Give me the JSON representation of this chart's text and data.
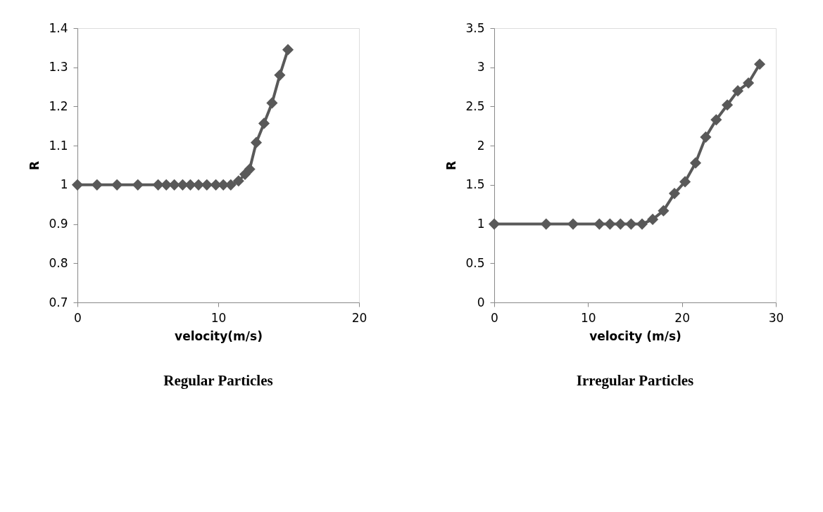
{
  "chart_data": [
    {
      "type": "line",
      "xlabel": "velocity(m/s)",
      "ylabel": "R",
      "marker": "diamond",
      "line_style": "solid",
      "grid": false,
      "legend": false,
      "xlim": [
        0,
        20
      ],
      "xticks": [
        0,
        10,
        20
      ],
      "ylim": [
        0.7,
        1.4
      ],
      "yticks": [
        0.7,
        0.8,
        0.9,
        1,
        1.1,
        1.2,
        1.3,
        1.4
      ],
      "annotations": [
        "Regular Particles"
      ],
      "series": [
        {
          "color": "#595959",
          "x": [
            0,
            1.39,
            2.81,
            4.29,
            5.73,
            6.31,
            6.88,
            7.47,
            8.02,
            8.6,
            9.19,
            9.83,
            10.36,
            10.89,
            11.44,
            11.9,
            12.23,
            12.7,
            13.25,
            13.82,
            14.37,
            14.95
          ],
          "values": [
            1,
            1,
            1,
            1,
            1,
            1,
            1,
            1,
            1,
            1,
            1,
            1,
            1,
            1,
            1.01,
            1.027,
            1.04,
            1.108,
            1.157,
            1.209,
            1.28,
            1.345
          ]
        }
      ]
    },
    {
      "type": "line",
      "xlabel": "velocity (m/s)",
      "ylabel": "R",
      "marker": "diamond",
      "line_style": "solid",
      "grid": false,
      "legend": false,
      "xlim": [
        0,
        30
      ],
      "xticks": [
        0,
        10,
        20,
        30
      ],
      "ylim": [
        0,
        3.5
      ],
      "yticks": [
        0,
        0.5,
        1,
        1.5,
        2,
        2.5,
        3,
        3.5
      ],
      "annotations": [
        "Irregular Particles"
      ],
      "series": [
        {
          "color": "#595959",
          "x": [
            0,
            5.53,
            8.4,
            11.2,
            12.33,
            13.45,
            14.58,
            15.75,
            16.88,
            18.03,
            19.2,
            20.33,
            21.45,
            22.53,
            23.65,
            24.83,
            25.95,
            27.08,
            28.28
          ],
          "values": [
            1,
            1,
            1,
            1,
            1,
            1,
            1,
            1,
            1.06,
            1.17,
            1.39,
            1.54,
            1.78,
            2.11,
            2.33,
            2.52,
            2.7,
            2.8,
            3.04
          ]
        }
      ]
    }
  ]
}
